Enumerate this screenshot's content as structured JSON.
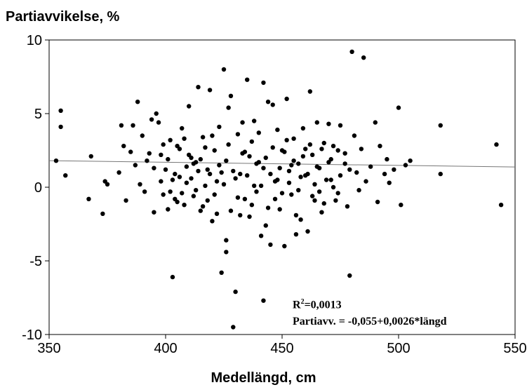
{
  "chart_data": {
    "type": "scatter",
    "title": "",
    "ylabel": "Partiavvikelse, %",
    "xlabel": "Medellängd, cm",
    "xlim": [
      350,
      550
    ],
    "ylim": [
      -10,
      10
    ],
    "xticks": [
      350,
      400,
      450,
      500,
      550
    ],
    "yticks": [
      10,
      5,
      0,
      -5,
      -10
    ],
    "grid": false,
    "regression": {
      "intercept": -0.055,
      "slope": 0.0026,
      "r2_prefix": "R",
      "r2_exp": "2",
      "r2_value": "=0,0013",
      "equation": "Partiavv. = -0,055+0,0026*längd"
    },
    "points": [
      [
        355,
        5.2
      ],
      [
        355,
        4.1
      ],
      [
        353,
        1.8
      ],
      [
        357,
        0.8
      ],
      [
        368,
        2.1
      ],
      [
        367,
        -0.8
      ],
      [
        373,
        -1.8
      ],
      [
        374,
        0.4
      ],
      [
        375,
        0.2
      ],
      [
        380,
        1.0
      ],
      [
        381,
        4.2
      ],
      [
        382,
        2.8
      ],
      [
        383,
        -0.9
      ],
      [
        385,
        2.4
      ],
      [
        386,
        4.2
      ],
      [
        387,
        1.5
      ],
      [
        388,
        5.8
      ],
      [
        389,
        0.2
      ],
      [
        390,
        3.5
      ],
      [
        391,
        -0.3
      ],
      [
        392,
        1.8
      ],
      [
        393,
        2.3
      ],
      [
        394,
        4.6
      ],
      [
        395,
        -1.7
      ],
      [
        396,
        5.0
      ],
      [
        397,
        4.4
      ],
      [
        398,
        2.2
      ],
      [
        399,
        -0.5
      ],
      [
        400,
        1.2
      ],
      [
        401,
        -1.5
      ],
      [
        402,
        3.2
      ],
      [
        403,
        -6.1
      ],
      [
        404,
        0.9
      ],
      [
        405,
        -1.0
      ],
      [
        406,
        2.6
      ],
      [
        407,
        4.0
      ],
      [
        408,
        -1.2
      ],
      [
        409,
        0.3
      ],
      [
        410,
        5.5
      ],
      [
        411,
        2.0
      ],
      [
        412,
        -0.6
      ],
      [
        413,
        1.7
      ],
      [
        414,
        6.8
      ],
      [
        415,
        -1.6
      ],
      [
        416,
        3.4
      ],
      [
        417,
        0.1
      ],
      [
        418,
        1.2
      ],
      [
        419,
        6.6
      ],
      [
        420,
        -2.3
      ],
      [
        421,
        2.5
      ],
      [
        422,
        -1.8
      ],
      [
        423,
        4.1
      ],
      [
        424,
        -5.8
      ],
      [
        425,
        8.0
      ],
      [
        426,
        -4.4
      ],
      [
        426,
        -3.6
      ],
      [
        427,
        5.4
      ],
      [
        428,
        6.2
      ],
      [
        429,
        -9.5
      ],
      [
        430,
        -7.1
      ],
      [
        431,
        3.6
      ],
      [
        432,
        -1.9
      ],
      [
        433,
        4.4
      ],
      [
        434,
        -0.8
      ],
      [
        435,
        7.3
      ],
      [
        436,
        2.1
      ],
      [
        437,
        -1.2
      ],
      [
        438,
        4.5
      ],
      [
        439,
        -0.3
      ],
      [
        440,
        1.7
      ],
      [
        441,
        -3.3
      ],
      [
        442,
        7.1
      ],
      [
        442,
        -7.7
      ],
      [
        443,
        -2.6
      ],
      [
        444,
        5.8
      ],
      [
        445,
        -3.9
      ],
      [
        446,
        5.6
      ],
      [
        447,
        0.4
      ],
      [
        448,
        3.9
      ],
      [
        449,
        -1.5
      ],
      [
        450,
        2.5
      ],
      [
        451,
        -4.0
      ],
      [
        452,
        6.0
      ],
      [
        453,
        1.1
      ],
      [
        454,
        -0.5
      ],
      [
        455,
        3.3
      ],
      [
        456,
        -3.2
      ],
      [
        457,
        1.6
      ],
      [
        458,
        -2.2
      ],
      [
        459,
        4.0
      ],
      [
        460,
        0.8
      ],
      [
        461,
        -3.0
      ],
      [
        462,
        6.5
      ],
      [
        463,
        2.2
      ],
      [
        464,
        -0.9
      ],
      [
        465,
        4.4
      ],
      [
        466,
        1.3
      ],
      [
        467,
        -1.7
      ],
      [
        468,
        3.0
      ],
      [
        470,
        4.3
      ],
      [
        471,
        0.5
      ],
      [
        472,
        2.8
      ],
      [
        474,
        -0.4
      ],
      [
        475,
        4.2
      ],
      [
        477,
        1.6
      ],
      [
        478,
        -1.3
      ],
      [
        479,
        -6.0
      ],
      [
        480,
        9.2
      ],
      [
        481,
        3.5
      ],
      [
        482,
        1.0
      ],
      [
        483,
        -0.2
      ],
      [
        484,
        2.6
      ],
      [
        485,
        8.8
      ],
      [
        486,
        0.4
      ],
      [
        488,
        1.4
      ],
      [
        490,
        4.4
      ],
      [
        491,
        -1.0
      ],
      [
        492,
        2.8
      ],
      [
        494,
        0.9
      ],
      [
        495,
        1.9
      ],
      [
        496,
        0.3
      ],
      [
        498,
        1.2
      ],
      [
        500,
        5.4
      ],
      [
        501,
        -1.2
      ],
      [
        503,
        1.5
      ],
      [
        505,
        1.8
      ],
      [
        518,
        4.2
      ],
      [
        518,
        0.9
      ],
      [
        542,
        2.9
      ],
      [
        544,
        -1.2
      ],
      [
        401,
        1.9
      ],
      [
        403,
        0.5
      ],
      [
        405,
        2.8
      ],
      [
        407,
        -0.4
      ],
      [
        409,
        1.4
      ],
      [
        411,
        0.6
      ],
      [
        413,
        -0.2
      ],
      [
        415,
        1.9
      ],
      [
        417,
        2.7
      ],
      [
        419,
        0.9
      ],
      [
        421,
        -0.5
      ],
      [
        423,
        1.5
      ],
      [
        425,
        0.2
      ],
      [
        427,
        2.9
      ],
      [
        429,
        1.1
      ],
      [
        431,
        -0.7
      ],
      [
        433,
        2.3
      ],
      [
        435,
        0.8
      ],
      [
        437,
        3.1
      ],
      [
        439,
        1.6
      ],
      [
        441,
        0.1
      ],
      [
        443,
        2.0
      ],
      [
        445,
        0.9
      ],
      [
        447,
        -0.8
      ],
      [
        449,
        1.3
      ],
      [
        451,
        2.4
      ],
      [
        453,
        0.3
      ],
      [
        455,
        1.8
      ],
      [
        457,
        -0.2
      ],
      [
        459,
        2.1
      ],
      [
        461,
        0.9
      ],
      [
        463,
        -0.6
      ],
      [
        465,
        1.4
      ],
      [
        467,
        2.6
      ],
      [
        469,
        0.5
      ],
      [
        471,
        1.9
      ],
      [
        473,
        -0.9
      ],
      [
        475,
        0.8
      ],
      [
        477,
        2.3
      ],
      [
        479,
        1.2
      ],
      [
        398,
        0.4
      ],
      [
        402,
        -0.3
      ],
      [
        406,
        0.7
      ],
      [
        410,
        2.2
      ],
      [
        414,
        1.1
      ],
      [
        418,
        -0.9
      ],
      [
        422,
        0.4
      ],
      [
        426,
        1.8
      ],
      [
        430,
        0.6
      ],
      [
        434,
        2.4
      ],
      [
        438,
        0.1
      ],
      [
        442,
        1.3
      ],
      [
        446,
        2.7
      ],
      [
        450,
        -0.4
      ],
      [
        454,
        1.5
      ],
      [
        458,
        0.7
      ],
      [
        462,
        2.9
      ],
      [
        466,
        -0.3
      ],
      [
        470,
        1.7
      ],
      [
        474,
        2.5
      ],
      [
        395,
        1.3
      ],
      [
        399,
        2.9
      ],
      [
        404,
        -0.8
      ],
      [
        408,
        3.3
      ],
      [
        412,
        1.6
      ],
      [
        416,
        -1.3
      ],
      [
        420,
        3.5
      ],
      [
        424,
        1.0
      ],
      [
        428,
        -1.6
      ],
      [
        432,
        0.9
      ],
      [
        436,
        -2.0
      ],
      [
        440,
        3.7
      ],
      [
        444,
        -1.4
      ],
      [
        448,
        0.5
      ],
      [
        452,
        3.2
      ],
      [
        456,
        -1.9
      ],
      [
        460,
        2.6
      ],
      [
        464,
        0.2
      ],
      [
        468,
        -1.1
      ],
      [
        472,
        0.0
      ]
    ]
  }
}
